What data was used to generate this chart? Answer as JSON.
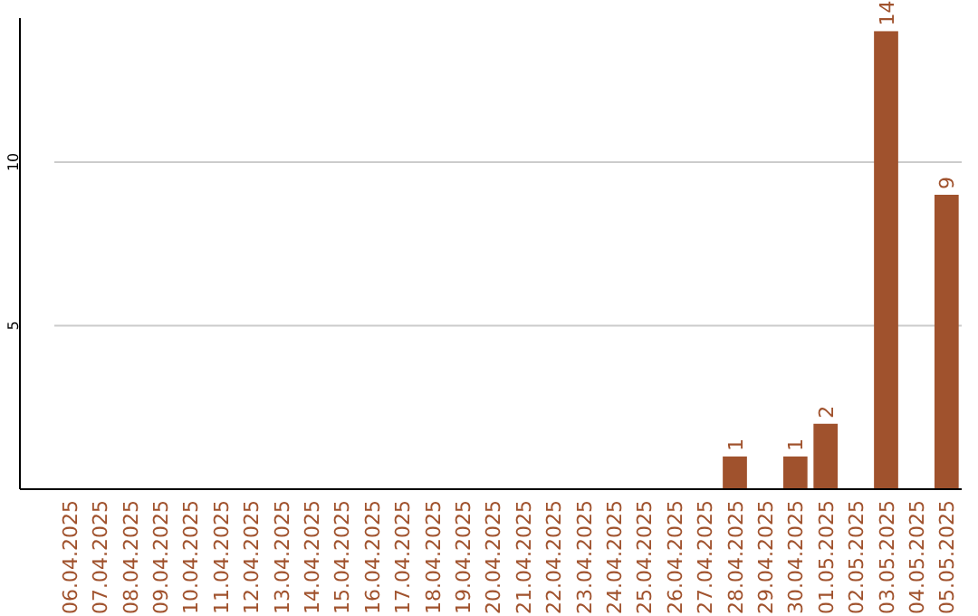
{
  "chart_data": {
    "type": "bar",
    "categories": [
      "06.04.2025",
      "07.04.2025",
      "08.04.2025",
      "09.04.2025",
      "10.04.2025",
      "11.04.2025",
      "12.04.2025",
      "13.04.2025",
      "14.04.2025",
      "15.04.2025",
      "16.04.2025",
      "17.04.2025",
      "18.04.2025",
      "19.04.2025",
      "20.04.2025",
      "21.04.2025",
      "22.04.2025",
      "23.04.2025",
      "24.04.2025",
      "25.04.2025",
      "26.04.2025",
      "27.04.2025",
      "28.04.2025",
      "29.04.2025",
      "30.04.2025",
      "01.05.2025",
      "02.05.2025",
      "03.05.2025",
      "04.05.2025",
      "05.05.2025"
    ],
    "values": [
      0,
      0,
      0,
      0,
      0,
      0,
      0,
      0,
      0,
      0,
      0,
      0,
      0,
      0,
      0,
      0,
      0,
      0,
      0,
      0,
      0,
      0,
      1,
      0,
      1,
      2,
      0,
      14,
      0,
      9
    ],
    "value_labels": [
      null,
      null,
      null,
      null,
      null,
      null,
      null,
      null,
      null,
      null,
      null,
      null,
      null,
      null,
      null,
      null,
      null,
      null,
      null,
      null,
      null,
      null,
      "1",
      null,
      "1",
      "2",
      null,
      "14",
      null,
      "9"
    ],
    "color": "#a0522d",
    "ylim": [
      0,
      14.4
    ],
    "yticks": [
      5,
      10
    ],
    "grid": "y"
  }
}
